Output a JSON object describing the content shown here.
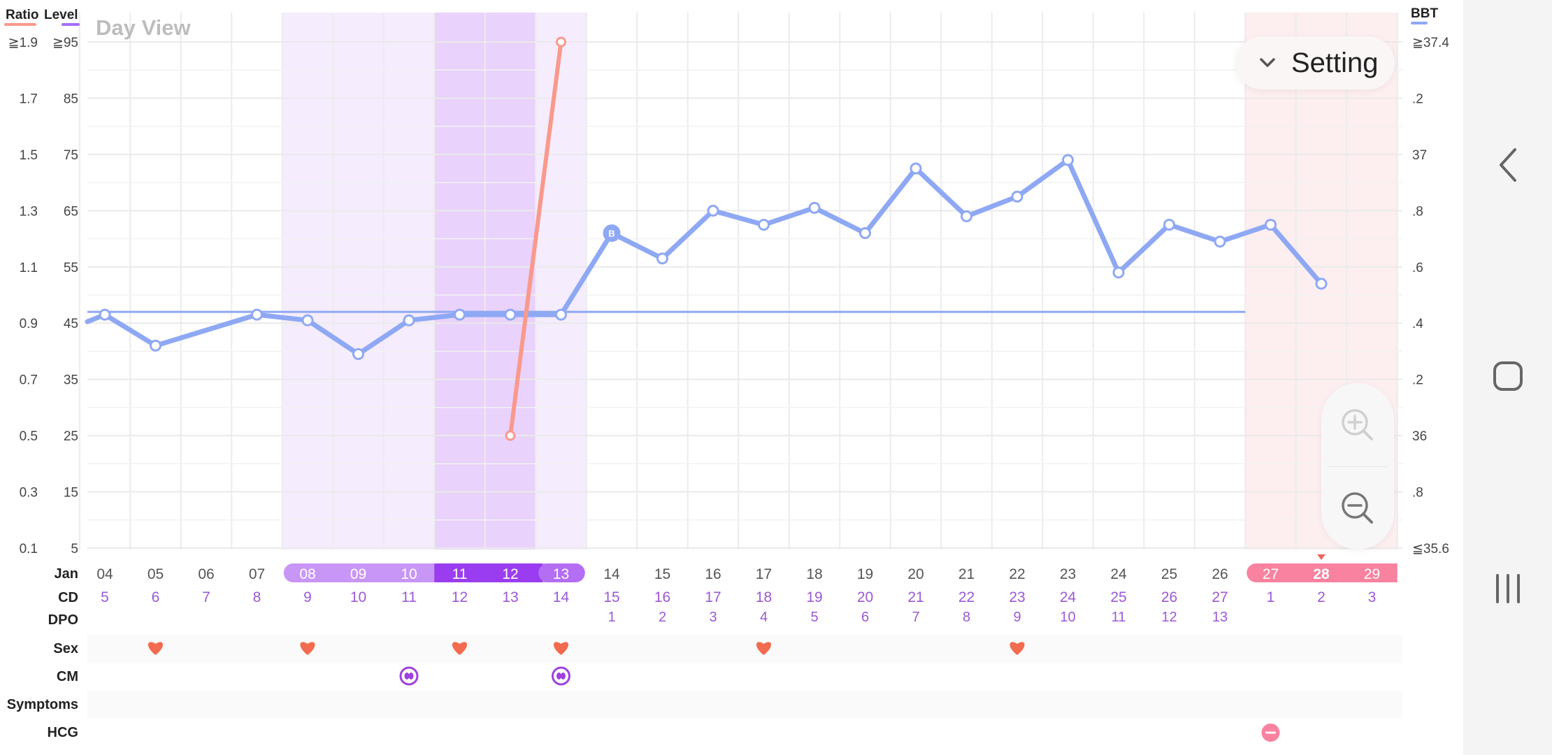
{
  "header": {
    "left_title_ratio": "Ratio",
    "left_title_level": "Level",
    "right_title": "BBT",
    "view_label": "Day View"
  },
  "legend_colors": {
    "ratio": "#f9998c",
    "level": "#a26ff5",
    "bbt": "#8ea8f4"
  },
  "setting": {
    "label": "Setting"
  },
  "chart_data": {
    "type": "line",
    "axes": {
      "ratio_ticks": [
        "≧1.9",
        "1.7",
        "1.5",
        "1.3",
        "1.1",
        "0.9",
        "0.7",
        "0.5",
        "0.3",
        "0.1"
      ],
      "level_ticks": [
        "≧95",
        "85",
        "75",
        "65",
        "55",
        "45",
        "35",
        "25",
        "15",
        "5"
      ],
      "bbt_ticks": [
        "≧37.4",
        ".2",
        "37",
        ".8",
        ".6",
        ".4",
        ".2",
        "36",
        ".8",
        "≦35.6"
      ],
      "bbt_range": [
        35.6,
        37.4
      ],
      "level_range": [
        5,
        95
      ]
    },
    "days": [
      "04",
      "05",
      "06",
      "07",
      "08",
      "09",
      "10",
      "11",
      "12",
      "13",
      "14",
      "15",
      "16",
      "17",
      "18",
      "19",
      "20",
      "21",
      "22",
      "23",
      "24",
      "25",
      "26",
      "27",
      "28",
      "29"
    ],
    "cycle_days": [
      "5",
      "6",
      "7",
      "8",
      "9",
      "10",
      "11",
      "12",
      "13",
      "14",
      "15",
      "16",
      "17",
      "18",
      "19",
      "20",
      "21",
      "22",
      "23",
      "24",
      "25",
      "26",
      "27",
      "1",
      "2",
      "3"
    ],
    "dpo": [
      "",
      "",
      "",
      "",
      "",
      "",
      "",
      "",
      "",
      "",
      "1",
      "2",
      "3",
      "4",
      "5",
      "6",
      "7",
      "8",
      "9",
      "10",
      "11",
      "12",
      "13",
      "",
      "",
      ""
    ],
    "fertile_days": [
      "08",
      "09",
      "10",
      "11",
      "12",
      "13"
    ],
    "peak_days": [
      "11",
      "12"
    ],
    "period_days": [
      "27",
      "28",
      "29"
    ],
    "today": "28",
    "series": [
      {
        "name": "BBT",
        "x": [
          "04",
          "05",
          "07",
          "08",
          "09",
          "10",
          "11",
          "12",
          "13",
          "14",
          "15",
          "16",
          "17",
          "18",
          "19",
          "20",
          "21",
          "22",
          "23",
          "24",
          "25",
          "26",
          "27",
          "28"
        ],
        "y": [
          36.43,
          36.32,
          36.43,
          36.41,
          36.29,
          36.41,
          36.43,
          36.43,
          36.43,
          36.72,
          36.63,
          36.8,
          36.75,
          36.81,
          36.72,
          36.95,
          36.78,
          36.85,
          36.98,
          36.58,
          36.75,
          36.69,
          36.75,
          36.54
        ],
        "marked_day": "14",
        "marked_label": "B"
      },
      {
        "name": "Level",
        "x": [
          "12",
          "13"
        ],
        "y": [
          25,
          95
        ]
      }
    ],
    "coverline": 36.44,
    "xlabel_month": "Jan"
  },
  "rows": {
    "month_label": "Jan",
    "cd_label": "CD",
    "dpo_label": "DPO",
    "sex_label": "Sex",
    "cm_label": "CM",
    "symptoms_label": "Symptoms",
    "hcg_label": "HCG",
    "sex_days": [
      "05",
      "08",
      "11",
      "13",
      "17",
      "22"
    ],
    "cm_days": [
      "10",
      "13"
    ],
    "hcg_days": [
      "27"
    ]
  },
  "icons": {
    "setting": "chevron-down-icon",
    "zoom_in": "zoom-in-icon",
    "zoom_out": "zoom-out-icon",
    "nav_back": "back-icon",
    "nav_home": "home-icon",
    "nav_recents": "recents-icon",
    "sex": "heart-icon",
    "cm": "cervical-mucus-icon",
    "hcg": "hcg-negative-icon"
  }
}
